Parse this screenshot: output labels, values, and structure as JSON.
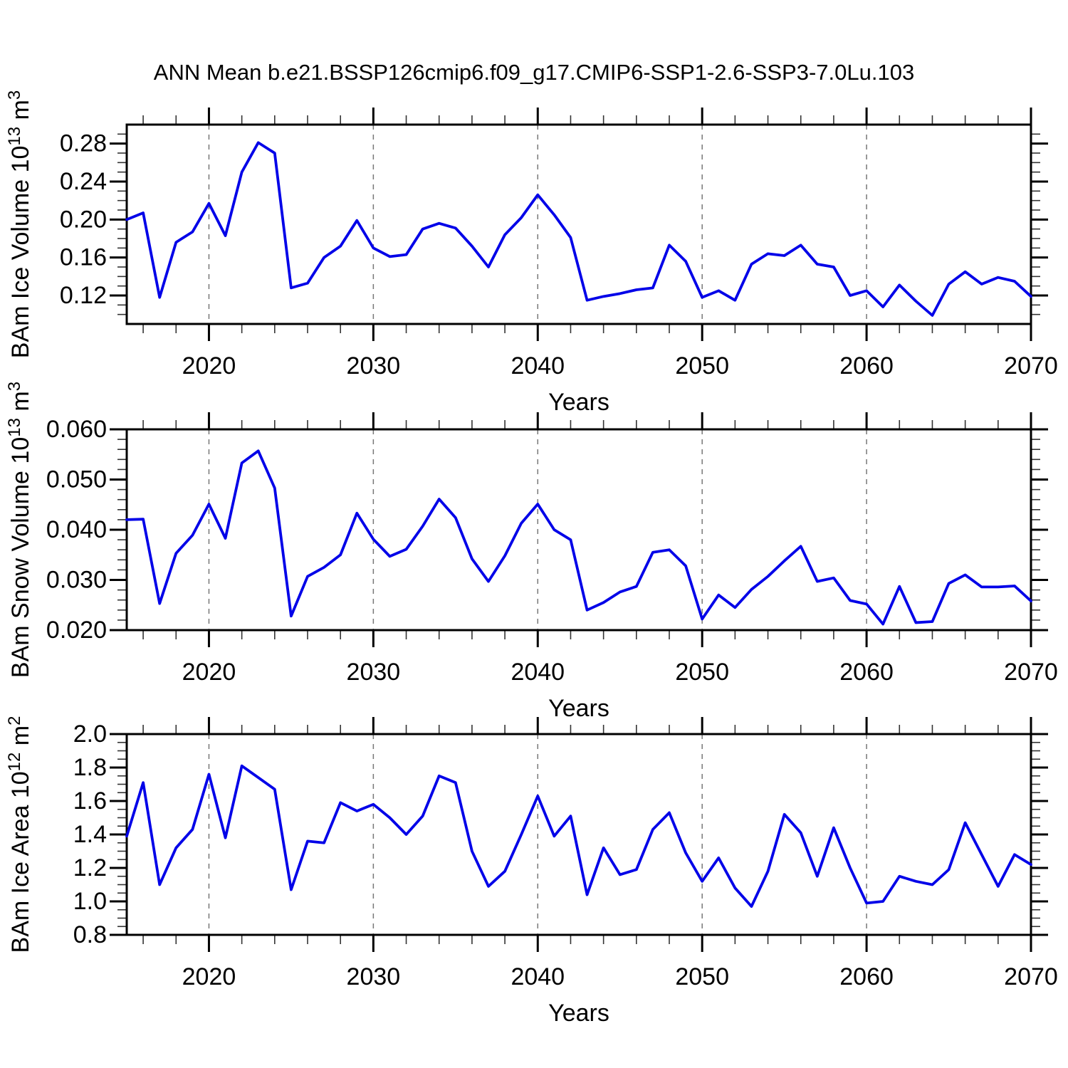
{
  "title": "ANN Mean b.e21.BSSP126cmip6.f09_g17.CMIP6-SSP1-2.6-SSP3-7.0Lu.103",
  "colors": {
    "line": "#0202e8",
    "grid": "#777777",
    "axis": "#000000",
    "background": "#ffffff"
  },
  "years": [
    2015,
    2016,
    2017,
    2018,
    2019,
    2020,
    2021,
    2022,
    2023,
    2024,
    2025,
    2026,
    2027,
    2028,
    2029,
    2030,
    2031,
    2032,
    2033,
    2034,
    2035,
    2036,
    2037,
    2038,
    2039,
    2040,
    2041,
    2042,
    2043,
    2044,
    2045,
    2046,
    2047,
    2048,
    2049,
    2050,
    2051,
    2052,
    2053,
    2054,
    2055,
    2056,
    2057,
    2058,
    2059,
    2060,
    2061,
    2062,
    2063,
    2064,
    2065,
    2066,
    2067,
    2068,
    2069,
    2070
  ],
  "chart_data": [
    {
      "type": "line",
      "name": "ice-volume",
      "ylabel": "BAm Ice Volume 10^13 m^3",
      "ylabel_parts": [
        {
          "t": "BAm Ice Volume 10"
        },
        {
          "t": "13",
          "sup": true
        },
        {
          "t": " m"
        },
        {
          "t": "3",
          "sup": true
        }
      ],
      "xlabel": "Years",
      "values": [
        0.2,
        0.207,
        0.118,
        0.176,
        0.187,
        0.217,
        0.183,
        0.25,
        0.281,
        0.27,
        0.128,
        0.133,
        0.16,
        0.172,
        0.199,
        0.17,
        0.161,
        0.163,
        0.19,
        0.196,
        0.191,
        0.172,
        0.15,
        0.184,
        0.202,
        0.226,
        0.205,
        0.181,
        0.115,
        0.119,
        0.122,
        0.126,
        0.128,
        0.173,
        0.156,
        0.118,
        0.125,
        0.115,
        0.153,
        0.164,
        0.162,
        0.173,
        0.153,
        0.15,
        0.12,
        0.125,
        0.108,
        0.131,
        0.114,
        0.099,
        0.132,
        0.145,
        0.132,
        0.139,
        0.135,
        0.119
      ],
      "ylim": [
        0.09,
        0.3
      ],
      "yticks": [
        0.12,
        0.16,
        0.2,
        0.24,
        0.28
      ],
      "ytick_labels": [
        "0.12",
        "0.16",
        "0.20",
        "0.24",
        "0.28"
      ],
      "y_minor_step": 0.01,
      "xlim": [
        2015,
        2070
      ],
      "xticks": [
        2020,
        2030,
        2040,
        2050,
        2060,
        2070
      ],
      "x_minor_step": 2,
      "grid_x": [
        2020,
        2030,
        2040,
        2050,
        2060
      ],
      "grid_on": true,
      "legend": "none"
    },
    {
      "type": "line",
      "name": "snow-volume",
      "ylabel": "BAm Snow Volume 10^13 m^3",
      "ylabel_parts": [
        {
          "t": "BAm Snow Volume 10"
        },
        {
          "t": "13",
          "sup": true
        },
        {
          "t": " m"
        },
        {
          "t": "3",
          "sup": true
        }
      ],
      "xlabel": "Years",
      "values": [
        0.042,
        0.0421,
        0.0253,
        0.0353,
        0.0389,
        0.0451,
        0.0383,
        0.0533,
        0.0557,
        0.0483,
        0.0228,
        0.0307,
        0.0325,
        0.035,
        0.0433,
        0.0381,
        0.0347,
        0.0361,
        0.0407,
        0.0461,
        0.0424,
        0.0342,
        0.0297,
        0.0348,
        0.0413,
        0.0451,
        0.04,
        0.038,
        0.024,
        0.0255,
        0.0276,
        0.0287,
        0.0355,
        0.036,
        0.0328,
        0.0222,
        0.027,
        0.0245,
        0.0281,
        0.0307,
        0.0338,
        0.0367,
        0.0297,
        0.0304,
        0.0259,
        0.0252,
        0.0212,
        0.0287,
        0.0215,
        0.0217,
        0.0293,
        0.031,
        0.0286,
        0.0286,
        0.0288,
        0.0258
      ],
      "ylim": [
        0.02,
        0.06
      ],
      "yticks": [
        0.02,
        0.03,
        0.04,
        0.05,
        0.06
      ],
      "ytick_labels": [
        "0.020",
        "0.030",
        "0.040",
        "0.050",
        "0.060"
      ],
      "y_minor_step": 0.002,
      "xlim": [
        2015,
        2070
      ],
      "xticks": [
        2020,
        2030,
        2040,
        2050,
        2060,
        2070
      ],
      "x_minor_step": 2,
      "grid_x": [
        2020,
        2030,
        2040,
        2050,
        2060
      ],
      "grid_on": true,
      "legend": "none"
    },
    {
      "type": "line",
      "name": "ice-area",
      "ylabel": "BAm Ice Area 10^12 m^2",
      "ylabel_parts": [
        {
          "t": "BAm Ice Area 10"
        },
        {
          "t": "12",
          "sup": true
        },
        {
          "t": " m"
        },
        {
          "t": "2",
          "sup": true
        }
      ],
      "xlabel": "Years",
      "values": [
        1.39,
        1.71,
        1.1,
        1.32,
        1.43,
        1.76,
        1.38,
        1.81,
        1.74,
        1.67,
        1.07,
        1.36,
        1.35,
        1.59,
        1.54,
        1.58,
        1.5,
        1.4,
        1.51,
        1.75,
        1.71,
        1.3,
        1.09,
        1.18,
        1.4,
        1.63,
        1.39,
        1.51,
        1.04,
        1.32,
        1.16,
        1.19,
        1.43,
        1.53,
        1.29,
        1.12,
        1.26,
        1.08,
        0.97,
        1.18,
        1.52,
        1.41,
        1.15,
        1.44,
        1.2,
        0.99,
        1.0,
        1.15,
        1.12,
        1.1,
        1.19,
        1.47,
        1.28,
        1.09,
        1.28,
        1.22
      ],
      "ylim": [
        0.8,
        2.0
      ],
      "yticks": [
        0.8,
        1.0,
        1.2,
        1.4,
        1.6,
        1.8,
        2.0
      ],
      "ytick_labels": [
        "0.8",
        "1.0",
        "1.2",
        "1.4",
        "1.6",
        "1.8",
        "2.0"
      ],
      "y_minor_step": 0.05,
      "xlim": [
        2015,
        2070
      ],
      "xticks": [
        2020,
        2030,
        2040,
        2050,
        2060,
        2070
      ],
      "x_minor_step": 2,
      "grid_x": [
        2020,
        2030,
        2040,
        2050,
        2060
      ],
      "grid_on": true,
      "legend": "none"
    }
  ]
}
